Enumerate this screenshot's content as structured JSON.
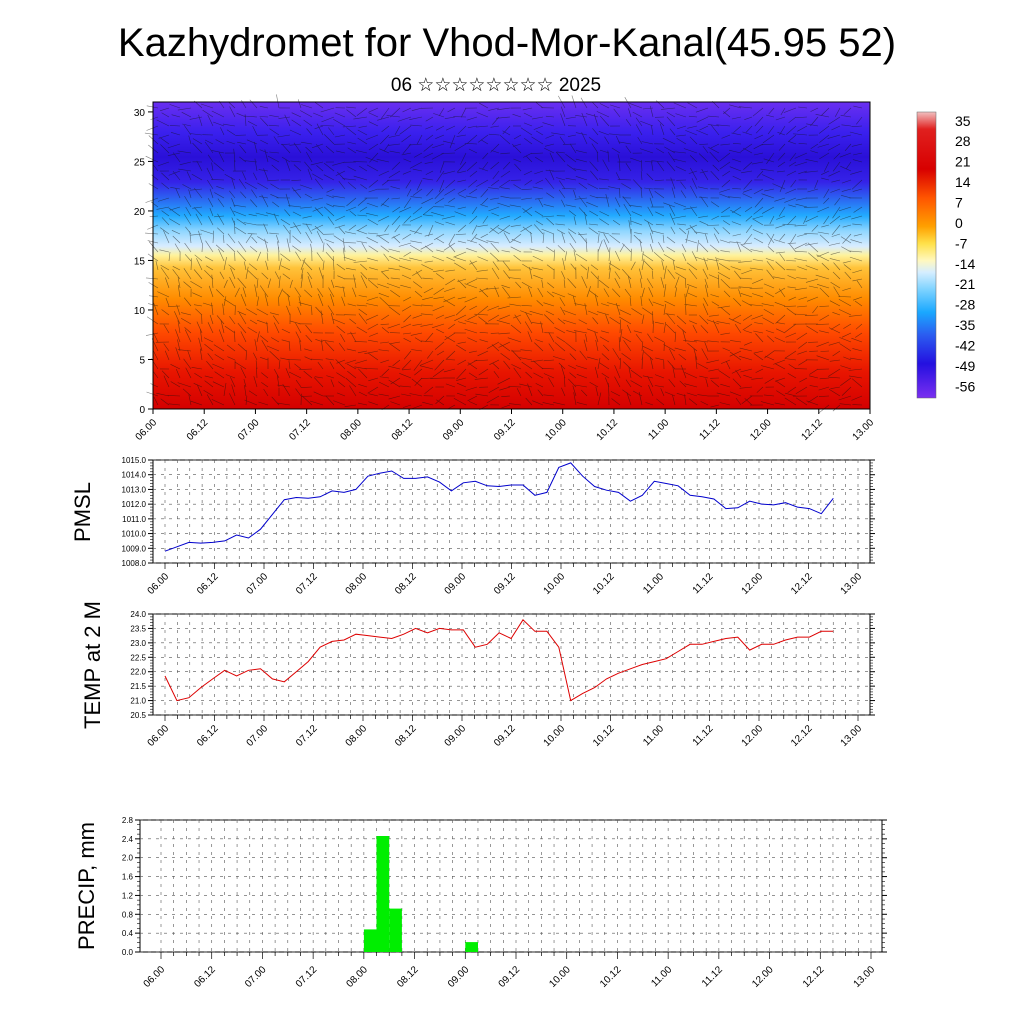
{
  "title": "Kazhydromet for Vhod-Mor-Kanal(45.95 52)",
  "subtitle": "06 ☆☆☆☆☆☆☆☆ 2025",
  "chart_data": [
    {
      "type": "heatmap",
      "panel": "cross-section",
      "x_ticks": [
        "06.00",
        "06.12",
        "07.00",
        "07.12",
        "08.00",
        "08.12",
        "09.00",
        "09.12",
        "10.00",
        "10.12",
        "11.00",
        "11.12",
        "12.00",
        "12.12",
        "13.00"
      ],
      "y_ticks": [
        "0",
        "5",
        "10",
        "15",
        "20",
        "25",
        "30"
      ],
      "ylim": [
        0,
        31
      ],
      "colorbar_labels": [
        "35",
        "28",
        "21",
        "14",
        "7",
        "0",
        "-7",
        "-14",
        "-21",
        "-28",
        "-35",
        "-42",
        "-49",
        "-56"
      ],
      "colorbar_range": [
        -60,
        38
      ],
      "colors": {
        "hot": "#cc0000",
        "warm": "#ff6a00",
        "mild": "#ffdd33",
        "cool": "#22bbff",
        "cold": "#3322ee",
        "coldest": "#6a1ff0"
      },
      "vectors": "wind arrows overlay"
    },
    {
      "type": "line",
      "ylabel": "PMSL",
      "y_ticks": [
        "1008.0",
        "1009.0",
        "1010.0",
        "1011.0",
        "1012.0",
        "1013.0",
        "1014.0",
        "1015.0"
      ],
      "ylim": [
        1008.0,
        1015.0
      ],
      "x_ticks": [
        "06.00",
        "06.12",
        "07.00",
        "07.12",
        "08.00",
        "08.12",
        "09.00",
        "09.12",
        "10.00",
        "10.12",
        "11.00",
        "11.12",
        "12.00",
        "12.12",
        "13.00"
      ],
      "color": "#0000cc",
      "values": [
        1008.8,
        1009.1,
        1009.4,
        1009.35,
        1009.4,
        1009.5,
        1009.9,
        1009.7,
        1010.3,
        1011.3,
        1012.3,
        1012.45,
        1012.4,
        1012.5,
        1012.9,
        1012.8,
        1013.0,
        1013.9,
        1014.1,
        1014.25,
        1013.75,
        1013.75,
        1013.85,
        1013.5,
        1012.9,
        1013.45,
        1013.55,
        1013.25,
        1013.2,
        1013.3,
        1013.3,
        1012.6,
        1012.8,
        1014.5,
        1014.8,
        1013.9,
        1013.2,
        1012.95,
        1012.8,
        1012.2,
        1012.6,
        1013.55,
        1013.4,
        1013.25,
        1012.6,
        1012.5,
        1012.35,
        1011.7,
        1011.75,
        1012.2,
        1012.0,
        1011.95,
        1012.1,
        1011.8,
        1011.7,
        1011.35,
        1012.4
      ]
    },
    {
      "type": "line",
      "ylabel": "TEMP at 2 M",
      "y_ticks": [
        "20.5",
        "21.0",
        "21.5",
        "22.0",
        "22.5",
        "23.0",
        "23.5",
        "24.0"
      ],
      "ylim": [
        20.5,
        24.0
      ],
      "x_ticks": [
        "06.00",
        "06.12",
        "07.00",
        "07.12",
        "08.00",
        "08.12",
        "09.00",
        "09.12",
        "10.00",
        "10.12",
        "11.00",
        "11.12",
        "12.00",
        "12.12",
        "13.00"
      ],
      "color": "#dd0000",
      "values": [
        21.85,
        21.0,
        21.1,
        21.45,
        21.75,
        22.05,
        21.85,
        22.05,
        22.1,
        21.75,
        21.65,
        22.0,
        22.35,
        22.85,
        23.05,
        23.1,
        23.3,
        23.25,
        23.2,
        23.15,
        23.3,
        23.5,
        23.35,
        23.5,
        23.45,
        23.45,
        22.85,
        22.95,
        23.35,
        23.15,
        23.8,
        23.4,
        23.4,
        22.85,
        21.0,
        21.25,
        21.45,
        21.75,
        21.95,
        22.1,
        22.25,
        22.35,
        22.45,
        22.7,
        22.95,
        22.95,
        23.05,
        23.15,
        23.2,
        22.75,
        22.95,
        22.95,
        23.1,
        23.2,
        23.2,
        23.4,
        23.4
      ]
    },
    {
      "type": "bar",
      "ylabel": "PRECIP, mm",
      "y_ticks": [
        "0.0",
        "0.4",
        "0.8",
        "1.2",
        "1.6",
        "2.0",
        "2.4",
        "2.8"
      ],
      "ylim": [
        0.0,
        2.8
      ],
      "x_ticks": [
        "06.00",
        "06.12",
        "07.00",
        "07.12",
        "08.00",
        "08.12",
        "09.00",
        "09.12",
        "10.00",
        "10.12",
        "11.00",
        "11.12",
        "12.00",
        "12.12",
        "13.00"
      ],
      "color": "#00ee00",
      "bars": [
        {
          "t": 48,
          "value": 0.48
        },
        {
          "t": 51,
          "value": 2.46
        },
        {
          "t": 54,
          "value": 0.92
        },
        {
          "t": 72,
          "value": 0.21
        }
      ]
    }
  ]
}
